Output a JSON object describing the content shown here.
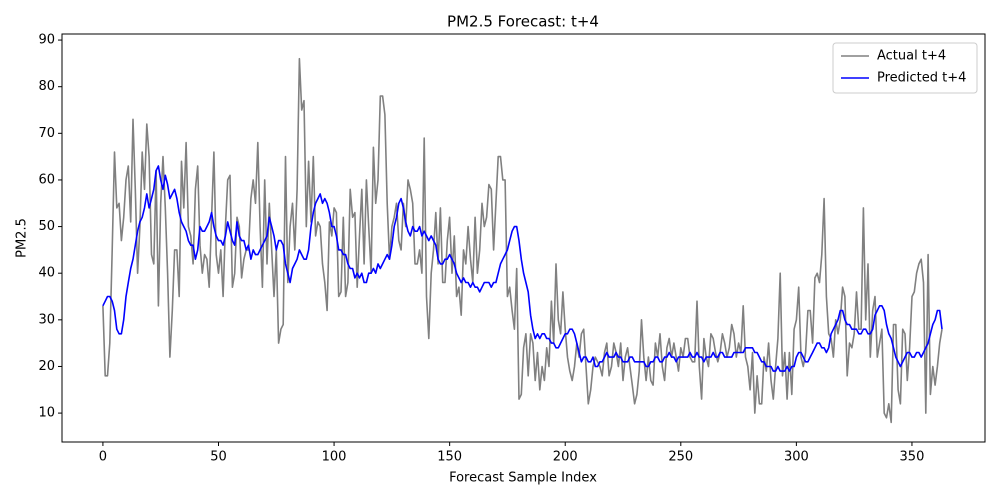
{
  "chart_data": {
    "type": "line",
    "title": "PM2.5 Forecast: t+4",
    "x_label": "Forecast Sample Index",
    "y_label": "PM2.5",
    "xlim": [
      -17.7,
      381.6
    ],
    "ylim": [
      3.8,
      91.3
    ],
    "xticks": [
      0,
      50,
      100,
      150,
      200,
      250,
      300,
      350
    ],
    "yticks": [
      10,
      20,
      30,
      40,
      50,
      60,
      70,
      80,
      90
    ],
    "legend": "upper right",
    "x": [
      0,
      1,
      2,
      3,
      4,
      5,
      6,
      7,
      8,
      9,
      10,
      11,
      12,
      13,
      14,
      15,
      16,
      17,
      18,
      19,
      20,
      21,
      22,
      23,
      24,
      25,
      26,
      27,
      28,
      29,
      30,
      31,
      32,
      33,
      34,
      35,
      36,
      37,
      38,
      39,
      40,
      41,
      42,
      43,
      44,
      45,
      46,
      47,
      48,
      49,
      50,
      51,
      52,
      53,
      54,
      55,
      56,
      57,
      58,
      59,
      60,
      61,
      62,
      63,
      64,
      65,
      66,
      67,
      68,
      69,
      70,
      71,
      72,
      73,
      74,
      75,
      76,
      77,
      78,
      79,
      80,
      81,
      82,
      83,
      84,
      85,
      86,
      87,
      88,
      89,
      90,
      91,
      92,
      93,
      94,
      95,
      96,
      97,
      98,
      99,
      100,
      101,
      102,
      103,
      104,
      105,
      106,
      107,
      108,
      109,
      110,
      111,
      112,
      113,
      114,
      115,
      116,
      117,
      118,
      119,
      120,
      121,
      122,
      123,
      124,
      125,
      126,
      127,
      128,
      129,
      130,
      131,
      132,
      133,
      134,
      135,
      136,
      137,
      138,
      139,
      140,
      141,
      142,
      143,
      144,
      145,
      146,
      147,
      148,
      149,
      150,
      151,
      152,
      153,
      154,
      155,
      156,
      157,
      158,
      159,
      160,
      161,
      162,
      163,
      164,
      165,
      166,
      167,
      168,
      169,
      170,
      171,
      172,
      173,
      174,
      175,
      176,
      177,
      178,
      179,
      180,
      181,
      182,
      183,
      184,
      185,
      186,
      187,
      188,
      189,
      190,
      191,
      192,
      193,
      194,
      195,
      196,
      197,
      198,
      199,
      200,
      201,
      202,
      203,
      204,
      205,
      206,
      207,
      208,
      209,
      210,
      211,
      212,
      213,
      214,
      215,
      216,
      217,
      218,
      219,
      220,
      221,
      222,
      223,
      224,
      225,
      226,
      227,
      228,
      229,
      230,
      231,
      232,
      233,
      234,
      235,
      236,
      237,
      238,
      239,
      240,
      241,
      242,
      243,
      244,
      245,
      246,
      247,
      248,
      249,
      250,
      251,
      252,
      253,
      254,
      255,
      256,
      257,
      258,
      259,
      260,
      261,
      262,
      263,
      264,
      265,
      266,
      267,
      268,
      269,
      270,
      271,
      272,
      273,
      274,
      275,
      276,
      277,
      278,
      279,
      280,
      281,
      282,
      283,
      284,
      285,
      286,
      287,
      288,
      289,
      290,
      291,
      292,
      293,
      294,
      295,
      296,
      297,
      298,
      299,
      300,
      301,
      302,
      303,
      304,
      305,
      306,
      307,
      308,
      309,
      310,
      311,
      312,
      313,
      314,
      315,
      316,
      317,
      318,
      319,
      320,
      321,
      322,
      323,
      324,
      325,
      326,
      327,
      328,
      329,
      330,
      331,
      332,
      333,
      334,
      335,
      336,
      337,
      338,
      339,
      340,
      341,
      342,
      343,
      344,
      345,
      346,
      347,
      348,
      349,
      350,
      351,
      352,
      353,
      354,
      355,
      356,
      357,
      358,
      359,
      360,
      361,
      362,
      363
    ],
    "series": [
      {
        "name": "Actual t+4",
        "color": "#808080",
        "values": [
          33,
          18,
          18,
          25,
          45,
          66,
          54,
          55,
          47,
          52,
          60,
          63,
          51,
          73,
          58,
          40,
          50,
          66,
          58,
          72,
          65,
          44,
          42,
          62,
          33,
          55,
          65,
          54,
          40,
          22,
          32,
          45,
          45,
          35,
          64,
          54,
          68,
          50,
          48,
          42,
          58,
          63,
          46,
          40,
          44,
          43,
          37,
          52,
          66,
          44,
          40,
          45,
          35,
          50,
          60,
          61,
          37,
          40,
          52,
          50,
          39,
          43,
          45,
          45,
          56,
          60,
          55,
          68,
          50,
          37,
          60,
          42,
          55,
          45,
          35,
          45,
          25,
          28,
          29,
          65,
          38,
          50,
          55,
          45,
          58,
          86,
          75,
          77,
          50,
          64,
          51,
          65,
          48,
          51,
          50,
          42,
          38,
          32,
          51,
          48,
          54,
          53,
          35,
          36,
          52,
          35,
          38,
          58,
          52,
          53,
          37,
          48,
          58,
          42,
          60,
          50,
          40,
          67,
          55,
          60,
          78,
          78,
          74,
          55,
          43,
          50,
          52,
          55,
          47,
          45,
          55,
          50,
          60,
          58,
          55,
          42,
          42,
          45,
          40,
          69,
          35,
          26,
          40,
          45,
          53,
          42,
          54,
          38,
          38,
          47,
          52,
          40,
          48,
          35,
          37,
          31,
          45,
          42,
          50,
          43,
          38,
          52,
          40,
          45,
          55,
          50,
          52,
          59,
          58,
          45,
          55,
          65,
          65,
          60,
          60,
          35,
          37,
          32,
          28,
          41,
          13,
          14,
          24,
          27,
          18,
          27,
          25,
          17,
          23,
          15,
          20,
          17,
          24,
          20,
          34,
          25,
          42,
          30,
          27,
          36,
          28,
          22,
          19,
          17,
          20,
          25,
          22,
          27,
          28,
          20,
          12,
          15,
          20,
          22,
          21,
          20,
          18,
          23,
          25,
          18,
          20,
          25,
          23,
          20,
          25,
          17,
          22,
          24,
          20,
          16,
          12,
          14,
          19,
          30,
          22,
          17,
          22,
          17,
          16,
          25,
          22,
          27,
          20,
          17,
          24,
          26,
          22,
          25,
          22,
          19,
          24,
          22,
          26,
          26,
          22,
          21,
          21,
          34,
          20,
          13,
          26,
          22,
          20,
          27,
          26,
          23,
          21,
          23,
          27,
          25,
          22,
          24,
          29,
          27,
          22,
          25,
          23,
          33,
          22,
          20,
          15,
          23,
          10,
          18,
          12,
          12,
          22,
          19,
          25,
          17,
          13,
          20,
          26,
          40,
          18,
          23,
          13,
          23,
          14,
          28,
          30,
          37,
          22,
          20,
          23,
          32,
          32,
          25,
          39,
          40,
          38,
          44,
          56,
          35,
          27,
          26,
          22,
          30,
          27,
          30,
          37,
          35,
          18,
          25,
          24,
          27,
          36,
          28,
          28,
          54,
          30,
          42,
          22,
          32,
          35,
          22,
          25,
          28,
          10,
          9,
          12,
          8,
          29,
          29,
          15,
          12,
          28,
          27,
          17,
          24,
          35,
          36,
          40,
          42,
          43,
          38,
          10,
          44,
          14,
          20,
          16,
          20,
          25,
          28
        ]
      },
      {
        "name": "Predicted t+4",
        "color": "#0000ff",
        "values": [
          33,
          34,
          35,
          35,
          34,
          32,
          28,
          27,
          27,
          30,
          35,
          38,
          41,
          43,
          46,
          49,
          51,
          52,
          54,
          57,
          54,
          56,
          58,
          62,
          63,
          60,
          58,
          61,
          59,
          56,
          57,
          58,
          56,
          53,
          51,
          50,
          49,
          47,
          46,
          46,
          43,
          45,
          50,
          49,
          49,
          50,
          51,
          53,
          50,
          48,
          47,
          47,
          46,
          48,
          51,
          49,
          47,
          46,
          51,
          48,
          47,
          47,
          45,
          46,
          43,
          45,
          44,
          44,
          45,
          46,
          47,
          48,
          52,
          50,
          48,
          45,
          47,
          47,
          46,
          42,
          40,
          38,
          41,
          42,
          43,
          45,
          44,
          43,
          43,
          45,
          50,
          53,
          55,
          56,
          57,
          55,
          56,
          55,
          53,
          50,
          50,
          48,
          45,
          45,
          44,
          44,
          42,
          41,
          41,
          39,
          40,
          39,
          40,
          38,
          38,
          40,
          40,
          41,
          40,
          42,
          41,
          42,
          43,
          44,
          43,
          46,
          50,
          52,
          55,
          56,
          54,
          51,
          49,
          48,
          50,
          49,
          49,
          50,
          48,
          49,
          48,
          47,
          48,
          47,
          46,
          43,
          42,
          42,
          43,
          43,
          44,
          43,
          42,
          40,
          39,
          38,
          39,
          38,
          38,
          37,
          38,
          37,
          37,
          36,
          37,
          38,
          38,
          38,
          37,
          38,
          38,
          40,
          42,
          43,
          44,
          45,
          47,
          49,
          50,
          50,
          47,
          43,
          40,
          38,
          36,
          31,
          28,
          26,
          27,
          26,
          27,
          27,
          26,
          26,
          25,
          25,
          24,
          24,
          25,
          26,
          27,
          27,
          28,
          28,
          27,
          25,
          23,
          21,
          22,
          22,
          21,
          21,
          22,
          20,
          20,
          21,
          21,
          22,
          23,
          22,
          22,
          22,
          23,
          22,
          22,
          21,
          21,
          21,
          22,
          22,
          21,
          21,
          21,
          21,
          21,
          20,
          20,
          21,
          21,
          22,
          22,
          21,
          21,
          22,
          22,
          23,
          22,
          22,
          21,
          22,
          22,
          22,
          22,
          22,
          23,
          22,
          22,
          23,
          22,
          22,
          21,
          22,
          22,
          22,
          23,
          22,
          22,
          23,
          23,
          22,
          22,
          22,
          22,
          23,
          23,
          23,
          23,
          23,
          24,
          24,
          24,
          24,
          23,
          23,
          22,
          21,
          21,
          20,
          20,
          20,
          19,
          19,
          20,
          19,
          19,
          19,
          20,
          19,
          20,
          20,
          22,
          23,
          23,
          22,
          21,
          21,
          22,
          23,
          24,
          25,
          25,
          24,
          24,
          23,
          24,
          27,
          28,
          29,
          30,
          32,
          32,
          30,
          29,
          29,
          28,
          28,
          28,
          27,
          27,
          28,
          28,
          27,
          27,
          28,
          31,
          32,
          33,
          33,
          32,
          29,
          27,
          26,
          24,
          22,
          21,
          20,
          21,
          22,
          23,
          23,
          22,
          22,
          23,
          23,
          22,
          23,
          24,
          25,
          27,
          29,
          30,
          32,
          32,
          28
        ]
      }
    ]
  }
}
